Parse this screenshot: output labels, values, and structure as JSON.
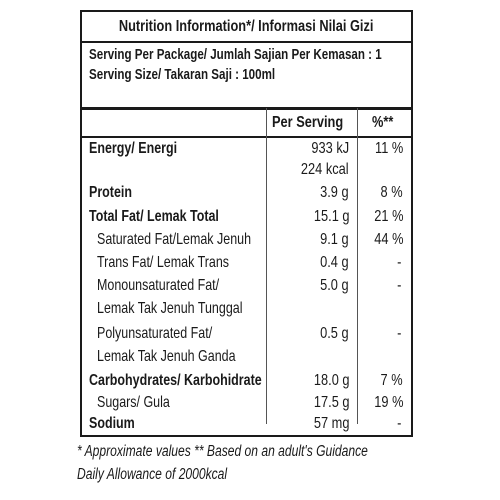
{
  "title": "Nutrition Information*/ Informasi Nilai Gizi",
  "serving": {
    "per_package": "Serving Per Package/ Jumlah Sajian Per Kemasan : 1",
    "size": "Serving Size/ Takaran Saji : 100ml"
  },
  "columns": {
    "per_serving": "Per Serving",
    "percent": "%**"
  },
  "rows": {
    "energy": {
      "label": "Energy/ Energi",
      "kj": "933 kJ",
      "kcal": "224 kcal",
      "pct": "11 %"
    },
    "protein": {
      "label": "Protein",
      "value": "3.9 g",
      "pct": "8 %"
    },
    "total_fat": {
      "label": "Total Fat/ Lemak Total",
      "value": "15.1 g",
      "pct": "21 %"
    },
    "sat_fat": {
      "label": "Saturated Fat/Lemak Jenuh",
      "value": "9.1 g",
      "pct": "44 %"
    },
    "trans_fat": {
      "label": "Trans Fat/ Lemak Trans",
      "value": "0.4 g",
      "pct": "-"
    },
    "mono_fat": {
      "label_1": "Monounsaturated Fat/",
      "label_2": "Lemak Tak Jenuh Tunggal",
      "value": "5.0 g",
      "pct": "-"
    },
    "poly_fat": {
      "label_1": "Polyunsaturated Fat/",
      "label_2": "Lemak Tak Jenuh Ganda",
      "value": "0.5 g",
      "pct": "-"
    },
    "carbs": {
      "label": "Carbohydrates/ Karbohidrate",
      "value": "18.0 g",
      "pct": "7 %"
    },
    "sugars": {
      "label": "Sugars/ Gula",
      "value": "17.5 g",
      "pct": "19 %"
    },
    "sodium": {
      "label": "Sodium",
      "value": "57 mg",
      "pct": "-"
    }
  },
  "footer": {
    "line_1": "* Approximate values  ** Based on an adult's Guidance",
    "line_2": "Daily Allowance of 2000kcal"
  }
}
